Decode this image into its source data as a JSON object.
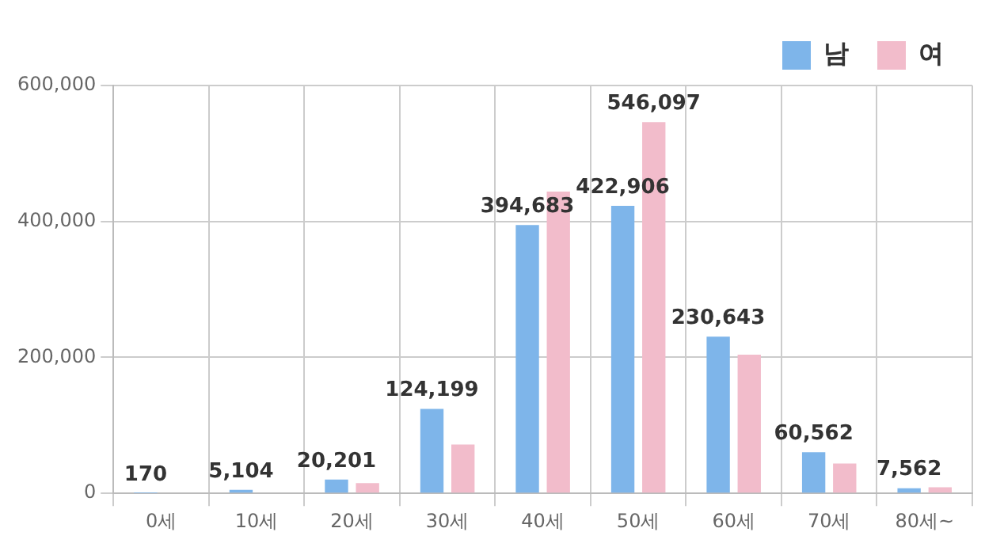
{
  "chart_data": {
    "type": "bar",
    "categories": [
      "0세",
      "10세",
      "20세",
      "30세",
      "40세",
      "50세",
      "60세",
      "70세",
      "80세~"
    ],
    "series": [
      {
        "name": "남",
        "color": "#7eb5ea",
        "values": [
          170,
          5104,
          20201,
          124199,
          394683,
          422906,
          230643,
          60562,
          7562
        ],
        "value_labels": [
          "170",
          "5,104",
          "20,201",
          "124,199",
          "394,683",
          "422,906",
          "230,643",
          "60,562",
          "7,562"
        ]
      },
      {
        "name": "여",
        "color": "#f2bccb",
        "values": [
          null,
          null,
          15000,
          72000,
          444000,
          546097,
          204000,
          44000,
          9000
        ],
        "value_labels": [
          null,
          null,
          null,
          null,
          null,
          "546,097",
          null,
          null,
          null
        ]
      }
    ],
    "ylim": [
      0,
      600000
    ],
    "yticks": [
      {
        "value": 0,
        "label": "0"
      },
      {
        "value": 200000,
        "label": "200,000"
      },
      {
        "value": 400000,
        "label": "400,000"
      },
      {
        "value": 600000,
        "label": "600,000"
      }
    ],
    "grid": true,
    "legend": "top right"
  }
}
